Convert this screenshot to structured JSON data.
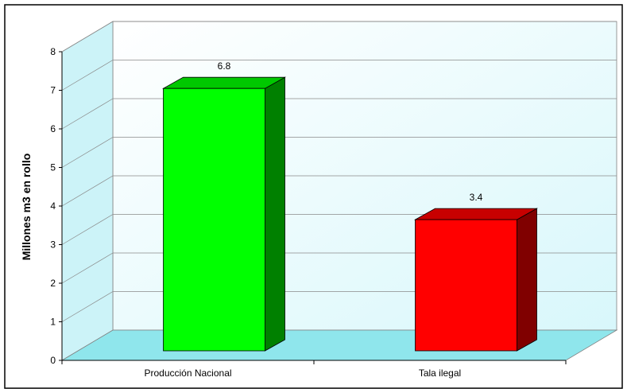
{
  "chart_data": {
    "type": "bar",
    "categories": [
      "Producción Nacional",
      "Tala ilegal"
    ],
    "values": [
      6.8,
      3.4
    ],
    "data_labels": [
      "6.8",
      "3.4"
    ],
    "ylabel": "Millones m3 en rollo",
    "xlabel": "",
    "ylim": [
      0,
      8
    ],
    "yticks": [
      "0",
      "1",
      "2",
      "3",
      "4",
      "5",
      "6",
      "7",
      "8"
    ],
    "grid": true,
    "legend": "none",
    "style": "3d-column",
    "colors": {
      "wall": "#e3fafc",
      "floor": "#8fe6ec",
      "bar_front": [
        "#00ff00",
        "#ff0000"
      ],
      "bar_top": [
        "#00c800",
        "#c80000"
      ],
      "bar_side": [
        "#008000",
        "#800000"
      ]
    }
  }
}
